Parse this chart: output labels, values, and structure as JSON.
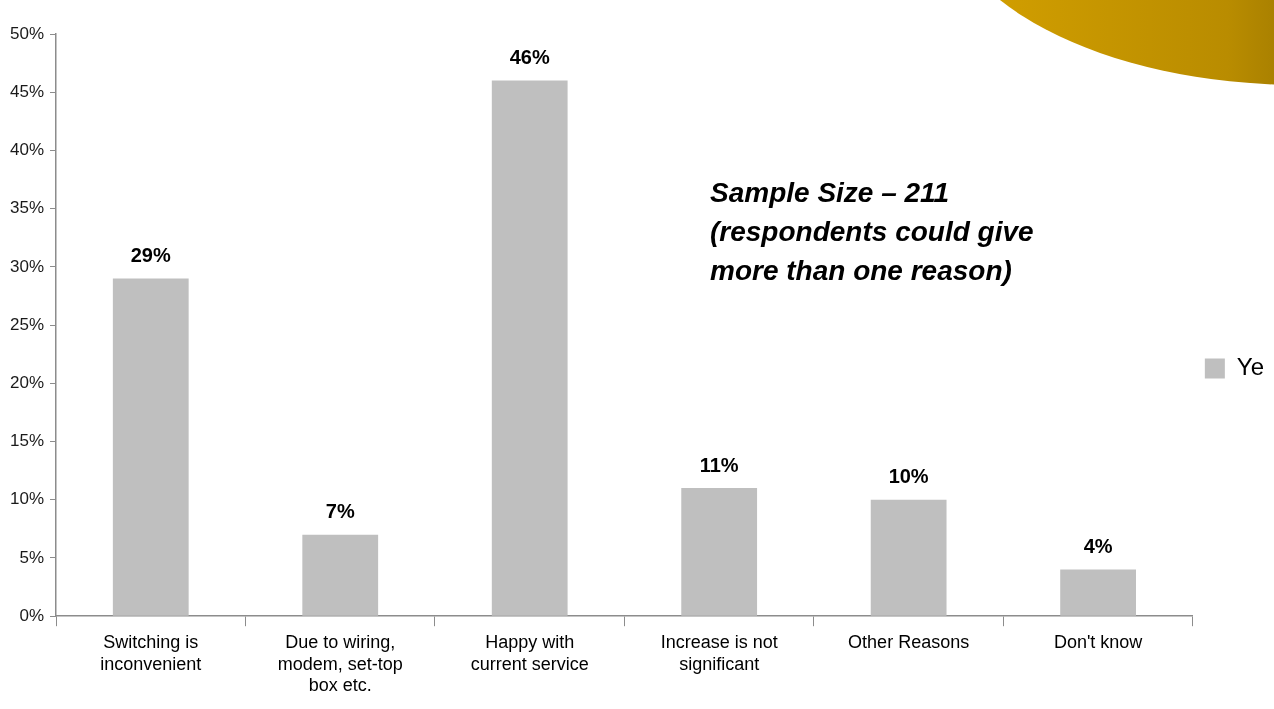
{
  "chart_data": {
    "type": "bar",
    "categories": [
      "Switching is inconvenient",
      "Due to wiring, modem, set-top box etc.",
      "Happy with current service",
      "Increase is not significant",
      "Other Reasons",
      "Don't know"
    ],
    "series": [
      {
        "name": "Ye",
        "color": "#bfbfbf",
        "values": [
          29,
          7,
          46,
          11,
          10,
          4
        ],
        "value_labels": [
          "29%",
          "7%",
          "46%",
          "11%",
          "10%",
          "4%"
        ]
      }
    ],
    "ylim": [
      0,
      50
    ],
    "yticks": [
      {
        "value": 0,
        "label": "0%"
      },
      {
        "value": 5,
        "label": "5%"
      },
      {
        "value": 10,
        "label": "10%"
      },
      {
        "value": 15,
        "label": "15%"
      },
      {
        "value": 20,
        "label": "20%"
      },
      {
        "value": 25,
        "label": "25%"
      },
      {
        "value": 30,
        "label": "30%"
      },
      {
        "value": 35,
        "label": "35%"
      },
      {
        "value": 40,
        "label": "40%"
      },
      {
        "value": 45,
        "label": "45%"
      },
      {
        "value": 50,
        "label": "50%"
      }
    ],
    "grid": false,
    "legend": "right",
    "annotations": [
      "Sample Size – 211\n(respondents could give more than one reason)"
    ]
  }
}
